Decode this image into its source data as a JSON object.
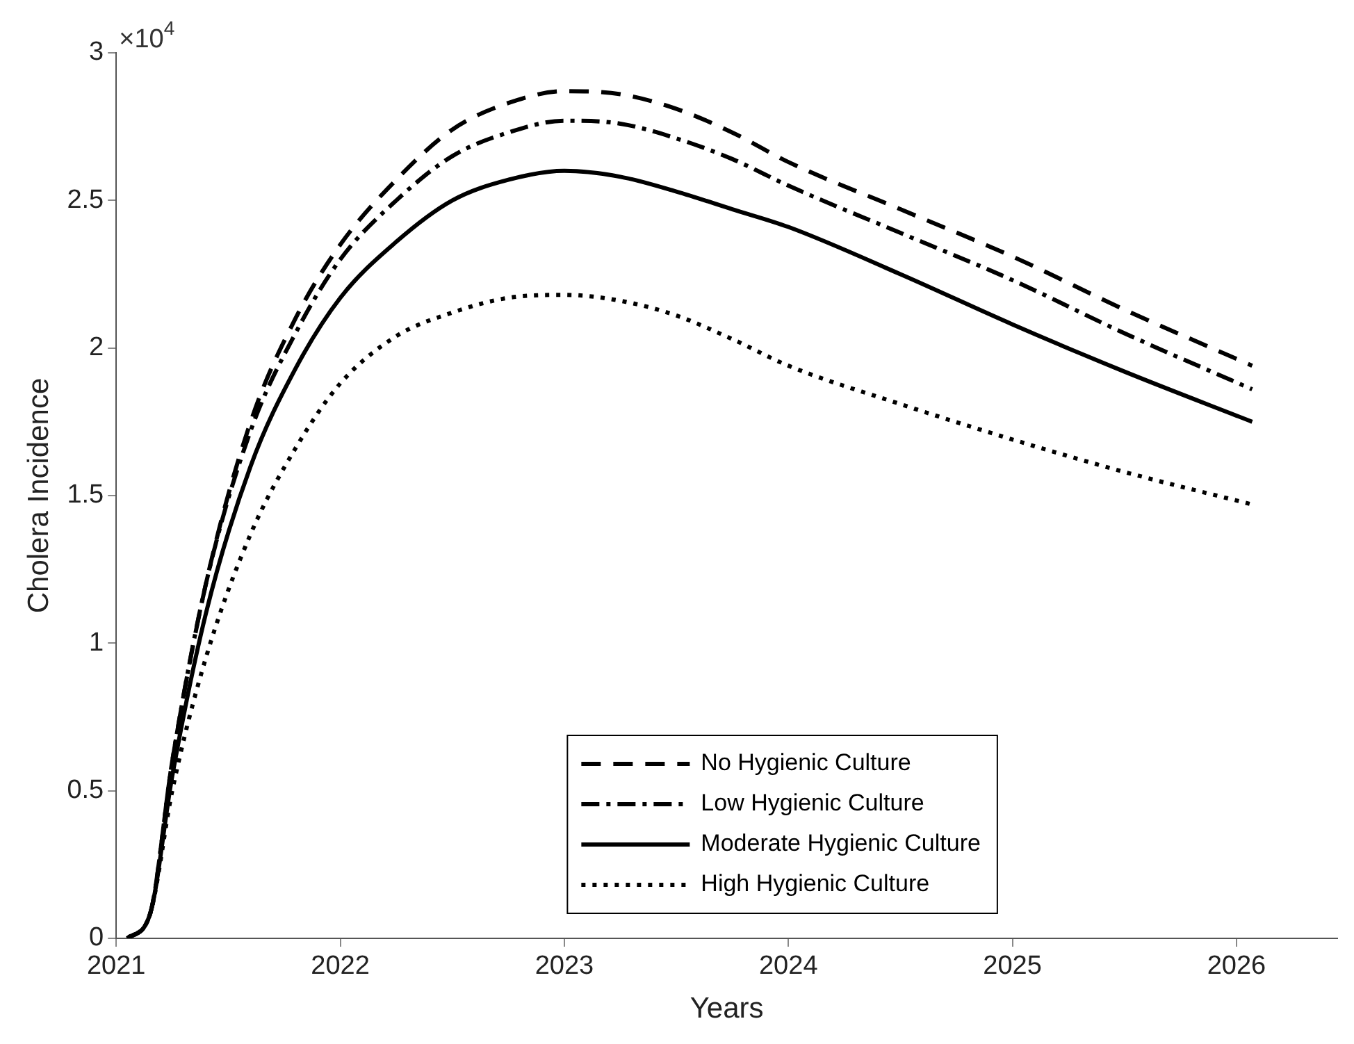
{
  "chart_data": {
    "type": "line",
    "xlabel": "Years",
    "ylabel": "Cholera Incidence",
    "annotations": [
      "×10$^{4}$"
    ],
    "x": [
      2021.05,
      2021.15,
      2021.25,
      2021.4,
      2021.6,
      2021.8,
      2022.0,
      2022.25,
      2022.5,
      2022.75,
      2023.0,
      2023.25,
      2023.5,
      2023.75,
      2024.0,
      2024.5,
      2025.0,
      2025.5,
      2026.07
    ],
    "series": [
      {
        "name": "No Hygienic Culture",
        "color": "#000000",
        "line_style": "dashed",
        "values": [
          0,
          0.08,
          0.6,
          1.2,
          1.75,
          2.1,
          2.35,
          2.57,
          2.74,
          2.83,
          2.87,
          2.86,
          2.81,
          2.73,
          2.63,
          2.47,
          2.31,
          2.13,
          1.94
        ]
      },
      {
        "name": "Low Hygienic Culture",
        "color": "#000000",
        "line_style": "dashdot",
        "values": [
          0,
          0.08,
          0.6,
          1.2,
          1.72,
          2.05,
          2.3,
          2.5,
          2.65,
          2.73,
          2.77,
          2.76,
          2.71,
          2.64,
          2.55,
          2.39,
          2.23,
          2.05,
          1.86
        ]
      },
      {
        "name": "Moderate Hygienic Culture",
        "color": "#000000",
        "line_style": "solid",
        "values": [
          0,
          0.08,
          0.55,
          1.1,
          1.6,
          1.93,
          2.17,
          2.36,
          2.5,
          2.57,
          2.6,
          2.58,
          2.53,
          2.47,
          2.41,
          2.25,
          2.08,
          1.92,
          1.75
        ]
      },
      {
        "name": "High Hygienic Culture",
        "color": "#000000",
        "line_style": "dotted",
        "values": [
          0,
          0.08,
          0.5,
          0.95,
          1.37,
          1.66,
          1.88,
          2.04,
          2.12,
          2.17,
          2.18,
          2.16,
          2.11,
          2.03,
          1.94,
          1.81,
          1.69,
          1.58,
          1.47
        ]
      }
    ],
    "xlim": [
      2021,
      2026.45
    ],
    "xticks": [
      2021,
      2022,
      2023,
      2024,
      2025,
      2026
    ],
    "ylim": [
      0,
      3
    ],
    "yticks": [
      0,
      0.5,
      1,
      1.5,
      2,
      2.5,
      3
    ],
    "grid": false,
    "legend": "bottom",
    "marker": "none"
  }
}
